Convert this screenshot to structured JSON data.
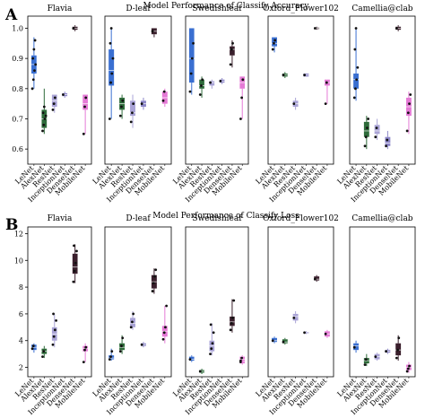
{
  "colors": {
    "LeNet": "#3a6fd1",
    "AlexNet": "#2e6b3a",
    "ResNet": "#a9a3d6",
    "InceptionNet": "#8c86c8",
    "DenseNet": "#3a1f2c",
    "MobileNet": "#e57ad6"
  },
  "chart_data": [
    {
      "type": "box",
      "panel_letter": "A",
      "title": "Model Performance of Classify Accuracy",
      "categories": [
        "LeNet",
        "AlexNet",
        "ResNet",
        "InceptionNet",
        "DenseNet",
        "MobileNet"
      ],
      "ylim": [
        0.55,
        1.04
      ],
      "yticks": [
        "0.6",
        "0.7",
        "0.8",
        "0.9",
        "1.0"
      ],
      "yticks_values": [
        0.6,
        0.7,
        0.8,
        0.9,
        1.0
      ],
      "datasets": [
        {
          "name": "Flavia",
          "boxes": [
            {
              "model": "LeNet",
              "q1": 0.85,
              "med": 0.88,
              "q3": 0.91,
              "lo": 0.8,
              "hi": 0.97,
              "pts": [
                0.8,
                0.83,
                0.86,
                0.88,
                0.9,
                0.93,
                0.96
              ]
            },
            {
              "model": "AlexNet",
              "q1": 0.67,
              "med": 0.7,
              "q3": 0.73,
              "lo": 0.65,
              "hi": 0.8,
              "pts": [
                0.66,
                0.68,
                0.7,
                0.71,
                0.72,
                0.74
              ]
            },
            {
              "model": "ResNet",
              "q1": 0.74,
              "med": 0.76,
              "q3": 0.78,
              "lo": 0.72,
              "hi": 0.78,
              "pts": [
                0.73,
                0.75,
                0.77
              ]
            },
            {
              "model": "InceptionNet",
              "q1": 0.775,
              "med": 0.78,
              "q3": 0.785,
              "lo": 0.77,
              "hi": 0.79,
              "pts": [
                0.78
              ]
            },
            {
              "model": "DenseNet",
              "q1": 0.995,
              "med": 1.0,
              "q3": 1.005,
              "lo": 0.99,
              "hi": 1.01,
              "pts": [
                1.0
              ]
            },
            {
              "model": "MobileNet",
              "q1": 0.73,
              "med": 0.75,
              "q3": 0.78,
              "lo": 0.65,
              "hi": 0.78,
              "pts": [
                0.65,
                0.74,
                0.77
              ]
            }
          ]
        },
        {
          "name": "D-leaf",
          "boxes": [
            {
              "model": "LeNet",
              "q1": 0.81,
              "med": 0.86,
              "q3": 0.93,
              "lo": 0.7,
              "hi": 1.0,
              "pts": [
                0.7,
                0.82,
                0.85,
                0.9,
                0.95,
                1.0
              ]
            },
            {
              "model": "AlexNet",
              "q1": 0.73,
              "med": 0.75,
              "q3": 0.77,
              "lo": 0.7,
              "hi": 0.78,
              "pts": [
                0.71,
                0.74,
                0.76
              ]
            },
            {
              "model": "ResNet",
              "q1": 0.71,
              "med": 0.72,
              "q3": 0.76,
              "lo": 0.67,
              "hi": 0.78,
              "pts": [
                0.69,
                0.72,
                0.75
              ]
            },
            {
              "model": "InceptionNet",
              "q1": 0.74,
              "med": 0.75,
              "q3": 0.76,
              "lo": 0.73,
              "hi": 0.77,
              "pts": [
                0.75
              ]
            },
            {
              "model": "DenseNet",
              "q1": 0.98,
              "med": 0.99,
              "q3": 1.0,
              "lo": 0.97,
              "hi": 1.0,
              "pts": [
                0.99
              ]
            },
            {
              "model": "MobileNet",
              "q1": 0.75,
              "med": 0.77,
              "q3": 0.79,
              "lo": 0.74,
              "hi": 0.8,
              "pts": [
                0.76,
                0.79
              ]
            }
          ]
        },
        {
          "name": "Swedishleaf",
          "boxes": [
            {
              "model": "LeNet",
              "q1": 0.82,
              "med": 0.9,
              "q3": 1.0,
              "lo": 0.78,
              "hi": 1.0,
              "pts": [
                0.79,
                0.85,
                0.9,
                0.95
              ]
            },
            {
              "model": "AlexNet",
              "q1": 0.8,
              "med": 0.81,
              "q3": 0.83,
              "lo": 0.77,
              "hi": 0.84,
              "pts": [
                0.78,
                0.81,
                0.83
              ]
            },
            {
              "model": "ResNet",
              "q1": 0.81,
              "med": 0.82,
              "q3": 0.825,
              "lo": 0.8,
              "hi": 0.83,
              "pts": [
                0.82
              ]
            },
            {
              "model": "InceptionNet",
              "q1": 0.82,
              "med": 0.825,
              "q3": 0.83,
              "lo": 0.815,
              "hi": 0.835,
              "pts": [
                0.825
              ]
            },
            {
              "model": "DenseNet",
              "q1": 0.91,
              "med": 0.93,
              "q3": 0.94,
              "lo": 0.87,
              "hi": 0.96,
              "pts": [
                0.88,
                0.93,
                0.95
              ]
            },
            {
              "model": "MobileNet",
              "q1": 0.8,
              "med": 0.82,
              "q3": 0.84,
              "lo": 0.7,
              "hi": 0.84,
              "pts": [
                0.7,
                0.77,
                0.83
              ]
            }
          ]
        },
        {
          "name": "Oxford_Flower102",
          "boxes": [
            {
              "model": "LeNet",
              "q1": 0.94,
              "med": 0.95,
              "q3": 0.97,
              "lo": 0.92,
              "hi": 0.97,
              "pts": [
                0.93,
                0.95,
                0.96
              ]
            },
            {
              "model": "AlexNet",
              "q1": 0.84,
              "med": 0.845,
              "q3": 0.85,
              "lo": 0.835,
              "hi": 0.855,
              "pts": [
                0.845
              ]
            },
            {
              "model": "ResNet",
              "q1": 0.74,
              "med": 0.75,
              "q3": 0.76,
              "lo": 0.73,
              "hi": 0.77,
              "pts": [
                0.75
              ]
            },
            {
              "model": "InceptionNet",
              "q1": 0.84,
              "med": 0.845,
              "q3": 0.85,
              "lo": 0.84,
              "hi": 0.85,
              "pts": [
                0.845
              ]
            },
            {
              "model": "DenseNet",
              "q1": 0.998,
              "med": 1.0,
              "q3": 1.002,
              "lo": 0.995,
              "hi": 1.005,
              "pts": [
                1.0
              ]
            },
            {
              "model": "MobileNet",
              "q1": 0.81,
              "med": 0.82,
              "q3": 0.83,
              "lo": 0.75,
              "hi": 0.83,
              "pts": [
                0.75,
                0.82
              ]
            }
          ]
        },
        {
          "name": "Camellia@clab",
          "boxes": [
            {
              "model": "LeNet",
              "q1": 0.8,
              "med": 0.83,
              "q3": 0.85,
              "lo": 0.76,
              "hi": 1.0,
              "pts": [
                0.77,
                0.8,
                0.83,
                0.87,
                0.93,
                1.0
              ]
            },
            {
              "model": "AlexNet",
              "q1": 0.64,
              "med": 0.66,
              "q3": 0.69,
              "lo": 0.6,
              "hi": 0.71,
              "pts": [
                0.61,
                0.64,
                0.67,
                0.7
              ]
            },
            {
              "model": "ResNet",
              "q1": 0.65,
              "med": 0.66,
              "q3": 0.68,
              "lo": 0.63,
              "hi": 0.7,
              "pts": [
                0.64,
                0.67
              ]
            },
            {
              "model": "InceptionNet",
              "q1": 0.61,
              "med": 0.62,
              "q3": 0.64,
              "lo": 0.6,
              "hi": 0.66,
              "pts": [
                0.61,
                0.63
              ]
            },
            {
              "model": "DenseNet",
              "q1": 0.995,
              "med": 1.0,
              "q3": 1.005,
              "lo": 0.99,
              "hi": 1.01,
              "pts": [
                1.0
              ]
            },
            {
              "model": "MobileNet",
              "q1": 0.71,
              "med": 0.74,
              "q3": 0.77,
              "lo": 0.65,
              "hi": 0.79,
              "pts": [
                0.66,
                0.72,
                0.75,
                0.78
              ]
            }
          ]
        }
      ]
    },
    {
      "type": "box",
      "panel_letter": "B",
      "title": "Model Performance of Classify Loss",
      "categories": [
        "LeNet",
        "AlexNet",
        "ResNet",
        "InceptionNet",
        "DenseNet",
        "MobileNet"
      ],
      "ylim": [
        1.3,
        12.5
      ],
      "yticks": [
        "2",
        "4",
        "6",
        "8",
        "10",
        "12"
      ],
      "yticks_values": [
        2,
        4,
        6,
        8,
        10,
        12
      ],
      "datasets": [
        {
          "name": "Flavia",
          "boxes": [
            {
              "model": "LeNet",
              "q1": 3.3,
              "med": 3.5,
              "q3": 3.7,
              "lo": 3.1,
              "hi": 3.8,
              "pts": [
                3.4,
                3.6
              ]
            },
            {
              "model": "AlexNet",
              "q1": 3.0,
              "med": 3.2,
              "q3": 3.4,
              "lo": 2.7,
              "hi": 3.6,
              "pts": [
                2.8,
                3.2
              ]
            },
            {
              "model": "ResNet",
              "q1": 4.0,
              "med": 4.5,
              "q3": 5.0,
              "lo": 3.5,
              "hi": 6.0,
              "pts": [
                3.7,
                4.3,
                4.8,
                5.5,
                6.0
              ]
            },
            {
              "model": "DenseNet",
              "q1": 9.0,
              "med": 9.5,
              "q3": 10.5,
              "lo": 8.3,
              "hi": 11.2,
              "pts": [
                8.4,
                9.2,
                9.8,
                10.7,
                11.1
              ]
            },
            {
              "model": "MobileNet",
              "q1": 3.2,
              "med": 3.4,
              "q3": 3.6,
              "lo": 2.4,
              "hi": 3.8,
              "pts": [
                2.4,
                3.3,
                3.5
              ]
            }
          ]
        },
        {
          "name": "D-leaf",
          "boxes": [
            {
              "model": "LeNet",
              "q1": 2.6,
              "med": 2.7,
              "q3": 2.9,
              "lo": 2.5,
              "hi": 3.4,
              "pts": [
                2.6,
                2.8,
                3.2
              ]
            },
            {
              "model": "AlexNet",
              "q1": 3.3,
              "med": 3.5,
              "q3": 3.8,
              "lo": 3.0,
              "hi": 4.4,
              "pts": [
                3.2,
                3.6,
                4.2
              ]
            },
            {
              "model": "ResNet",
              "q1": 5.0,
              "med": 5.3,
              "q3": 5.7,
              "lo": 4.8,
              "hi": 6.2,
              "pts": [
                5.0,
                5.4,
                6.0
              ]
            },
            {
              "model": "InceptionNet",
              "q1": 3.6,
              "med": 3.7,
              "q3": 3.8,
              "lo": 3.5,
              "hi": 3.9,
              "pts": [
                3.7
              ]
            },
            {
              "model": "DenseNet",
              "q1": 7.9,
              "med": 8.4,
              "q3": 8.9,
              "lo": 7.5,
              "hi": 9.4,
              "pts": [
                7.7,
                8.3,
                8.8,
                9.3
              ]
            },
            {
              "model": "MobileNet",
              "q1": 4.3,
              "med": 4.7,
              "q3": 5.1,
              "lo": 3.8,
              "hi": 6.6,
              "pts": [
                4.1,
                4.6,
                5.0,
                6.6
              ]
            }
          ]
        },
        {
          "name": "Swedishleaf",
          "boxes": [
            {
              "model": "LeNet",
              "q1": 2.5,
              "med": 2.6,
              "q3": 2.8,
              "lo": 2.4,
              "hi": 2.9,
              "pts": [
                2.6
              ]
            },
            {
              "model": "AlexNet",
              "q1": 1.6,
              "med": 1.7,
              "q3": 1.8,
              "lo": 1.5,
              "hi": 1.9,
              "pts": [
                1.7
              ]
            },
            {
              "model": "ResNet",
              "q1": 3.2,
              "med": 3.6,
              "q3": 4.0,
              "lo": 2.9,
              "hi": 5.3,
              "pts": [
                3.0,
                3.4,
                3.8,
                4.6,
                5.2
              ]
            },
            {
              "model": "DenseNet",
              "q1": 5.1,
              "med": 5.4,
              "q3": 5.8,
              "lo": 4.6,
              "hi": 7.1,
              "pts": [
                4.8,
                5.3,
                5.7,
                7.0
              ]
            },
            {
              "model": "MobileNet",
              "q1": 2.3,
              "med": 2.45,
              "q3": 2.6,
              "lo": 2.2,
              "hi": 2.7,
              "pts": [
                2.4
              ]
            },
            {
              "model": "MobileNet",
              "q1": 2.5,
              "med": 2.6,
              "q3": 2.8,
              "lo": 2.3,
              "hi": 2.9,
              "pts": [
                2.5,
                2.7
              ]
            }
          ]
        },
        {
          "name": "Oxford_Flower102",
          "boxes": [
            {
              "model": "LeNet",
              "q1": 3.9,
              "med": 4.0,
              "q3": 4.2,
              "lo": 3.8,
              "hi": 4.3,
              "pts": [
                4.0
              ]
            },
            {
              "model": "AlexNet",
              "q1": 3.8,
              "med": 3.9,
              "q3": 4.1,
              "lo": 3.7,
              "hi": 4.2,
              "pts": [
                3.9
              ]
            },
            {
              "model": "ResNet",
              "q1": 5.5,
              "med": 5.8,
              "q3": 6.0,
              "lo": 5.3,
              "hi": 6.2,
              "pts": [
                5.7
              ]
            },
            {
              "model": "DenseNet",
              "q1": 8.5,
              "med": 8.6,
              "q3": 8.8,
              "lo": 8.4,
              "hi": 8.9,
              "pts": [
                8.6
              ]
            },
            {
              "model": "InceptionNet",
              "q1": 4.55,
              "med": 4.6,
              "q3": 4.65,
              "lo": 4.5,
              "hi": 4.7,
              "pts": [
                4.6
              ]
            },
            {
              "model": "MobileNet",
              "q1": 4.3,
              "med": 4.5,
              "q3": 4.7,
              "lo": 4.2,
              "hi": 4.8,
              "pts": [
                4.5
              ]
            }
          ]
        },
        {
          "name": "Camellia@clab",
          "boxes": [
            {
              "model": "LeNet",
              "q1": 3.3,
              "med": 3.6,
              "q3": 3.8,
              "lo": 3.1,
              "hi": 4.0,
              "pts": [
                3.5
              ]
            },
            {
              "model": "AlexNet",
              "q1": 2.3,
              "med": 2.5,
              "q3": 2.7,
              "lo": 2.1,
              "hi": 3.0,
              "pts": [
                2.2,
                2.6
              ]
            },
            {
              "model": "ResNet",
              "q1": 2.6,
              "med": 2.8,
              "q3": 3.0,
              "lo": 2.5,
              "hi": 3.1,
              "pts": [
                2.8
              ]
            },
            {
              "model": "DenseNet",
              "q1": 2.9,
              "med": 3.3,
              "q3": 3.8,
              "lo": 2.5,
              "hi": 4.4,
              "pts": [
                2.7,
                3.3,
                4.2
              ]
            },
            {
              "model": "InceptionNet",
              "q1": 3.1,
              "med": 3.2,
              "q3": 3.3,
              "lo": 3.0,
              "hi": 3.4,
              "pts": [
                3.2
              ]
            },
            {
              "model": "MobileNet",
              "q1": 1.8,
              "med": 2.0,
              "q3": 2.2,
              "lo": 1.6,
              "hi": 2.4,
              "pts": [
                1.7,
                1.9,
                2.1
              ]
            }
          ]
        }
      ]
    }
  ]
}
